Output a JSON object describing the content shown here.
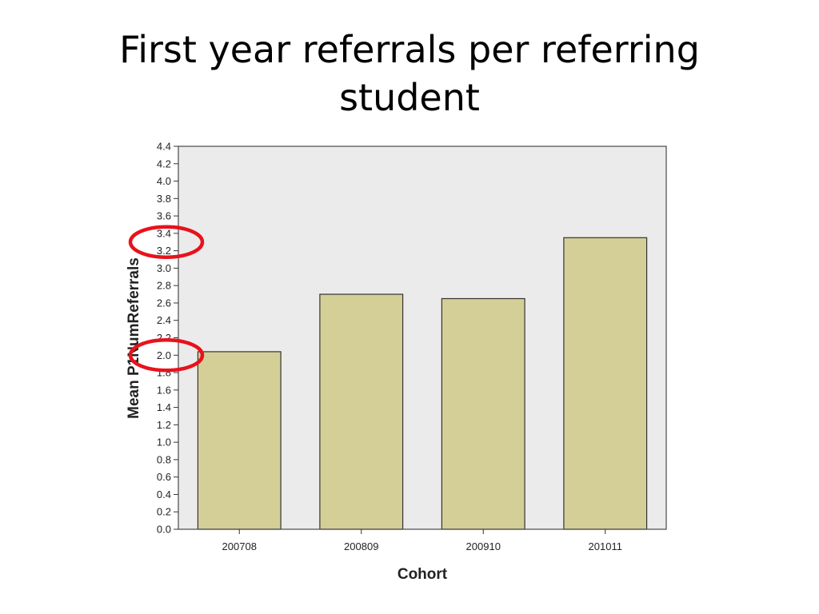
{
  "slide": {
    "title_line1": "First year referrals per referring",
    "title_line2": "student"
  },
  "chart_data": {
    "type": "bar",
    "categories": [
      "200708",
      "200809",
      "200910",
      "201011"
    ],
    "values": [
      2.04,
      2.7,
      2.65,
      3.35
    ],
    "xlabel": "Cohort",
    "ylabel": "Mean P1NumReferrals",
    "ylim": [
      0,
      4.4
    ],
    "yticks": [
      "0.0",
      "0.2",
      "0.4",
      "0.6",
      "0.8",
      "1.0",
      "1.2",
      "1.4",
      "1.6",
      "1.8",
      "2.0",
      "2.2",
      "2.4",
      "2.6",
      "2.8",
      "3.0",
      "3.2",
      "3.4",
      "3.6",
      "3.8",
      "4.0",
      "4.2",
      "4.4"
    ],
    "grid": false,
    "colors": {
      "plot_background": "#ebebeb",
      "bar_fill": "#d3cf97",
      "bar_stroke": "#333333",
      "annotation": "#e8121c"
    },
    "annotations": [
      {
        "type": "circle",
        "around_y": 3.3
      },
      {
        "type": "circle",
        "around_y": 2.0
      }
    ]
  }
}
